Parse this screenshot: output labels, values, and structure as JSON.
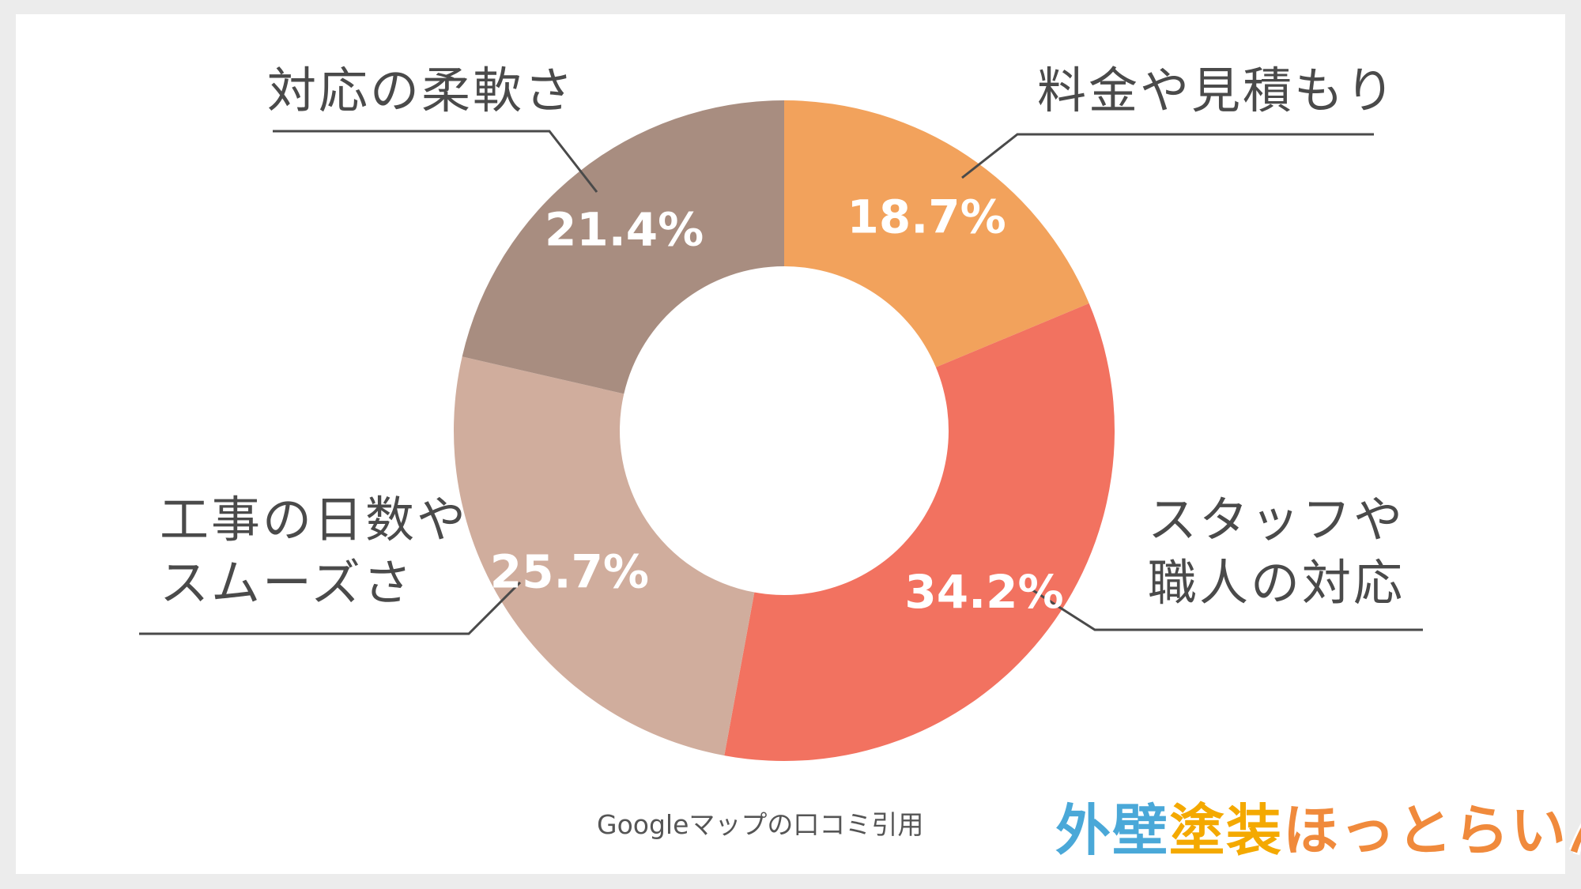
{
  "colors": {
    "background": "#ececec",
    "card": "#ffffff",
    "text": "#4a4a4a",
    "leader_line": "#4a4a4a"
  },
  "chart_data": {
    "type": "pie",
    "variant": "donut",
    "categories": [
      "料金や見積もり",
      "スタッフや\n職人の対応",
      "工事の日数や\nスムーズさ",
      "対応の柔軟さ"
    ],
    "values": [
      18.7,
      34.2,
      25.7,
      21.4
    ],
    "value_labels": [
      "18.7%",
      "34.2%",
      "25.7%",
      "21.4%"
    ],
    "colors": [
      "#f2a25c",
      "#f27260",
      "#d0ad9d",
      "#a88d80"
    ],
    "start_angle": "12 o'clock",
    "direction": "clockwise",
    "legend": "none (leader-line labels)"
  },
  "footer": {
    "source_note": "Googleマップの口コミ引用",
    "logo": {
      "part1": "外壁",
      "part2": "塗装",
      "part3": "ほっとらいん"
    }
  }
}
